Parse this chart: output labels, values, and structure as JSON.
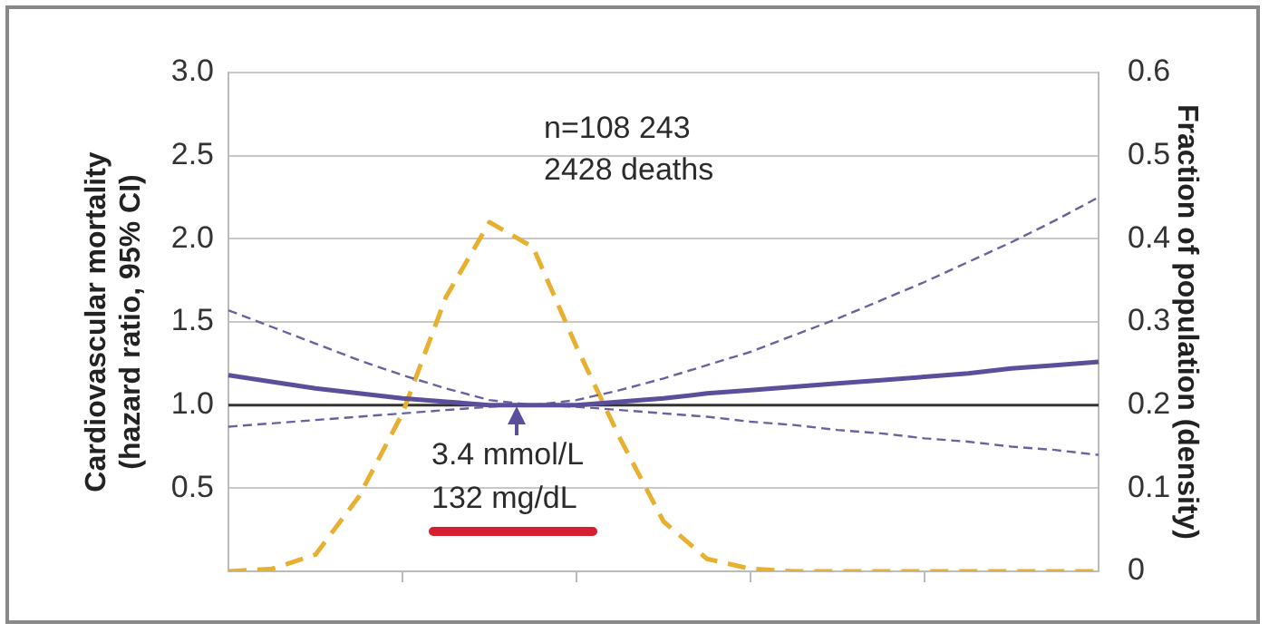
{
  "chart_data": {
    "type": "line",
    "ylabel": "Cardiovascular mortality (hazard ratio, 95% CI)",
    "y2label": "Fraction of population (density)",
    "categories": [
      null,
      null,
      null,
      null,
      null,
      null,
      null,
      null,
      null,
      null,
      null,
      null,
      null,
      null,
      null,
      null,
      null,
      null,
      null,
      null,
      null
    ],
    "series": [
      {
        "color": "#5b4f9c",
        "line_style": "solid",
        "values": [
          1.18,
          1.14,
          1.1,
          1.07,
          1.04,
          1.02,
          1.0,
          1.0,
          1.0,
          1.02,
          1.04,
          1.07,
          1.09,
          1.11,
          1.13,
          1.15,
          1.17,
          1.19,
          1.22,
          1.24,
          1.26
        ]
      },
      {
        "color": "#6a62a0",
        "line_style": "dashed",
        "values": [
          1.57,
          1.47,
          1.37,
          1.27,
          1.18,
          1.1,
          1.03,
          1.0,
          1.03,
          1.09,
          1.16,
          1.24,
          1.32,
          1.42,
          1.52,
          1.63,
          1.74,
          1.86,
          1.98,
          2.11,
          2.25
        ]
      },
      {
        "color": "#6a62a0",
        "line_style": "dashed",
        "values": [
          0.87,
          0.89,
          0.91,
          0.93,
          0.95,
          0.97,
          0.99,
          1.0,
          0.99,
          0.97,
          0.95,
          0.93,
          0.9,
          0.88,
          0.85,
          0.83,
          0.8,
          0.78,
          0.75,
          0.73,
          0.7
        ]
      },
      {
        "color": "#e8b030",
        "line_style": "dashed",
        "axis": "y2",
        "values": [
          0,
          0.003,
          0.02,
          0.09,
          0.19,
          0.33,
          0.42,
          0.39,
          0.27,
          0.16,
          0.06,
          0.015,
          0.003,
          0,
          0,
          0,
          0,
          0,
          0,
          0,
          0
        ]
      }
    ],
    "ylim": [
      0,
      3
    ],
    "yticks": [
      {
        "value": 0,
        "label": null
      },
      0.5,
      {
        "value": 1,
        "label": "1.0"
      },
      1.5,
      {
        "value": 2,
        "label": "2.0"
      },
      2.5,
      {
        "value": 3,
        "label": "3.0"
      }
    ],
    "y2lim": [
      0,
      0.6
    ],
    "y2ticks": [
      0,
      0.1,
      0.2,
      0.3,
      0.4,
      0.5,
      0.6
    ],
    "ref_lines": [
      {
        "axis": "y",
        "value": 1,
        "color": "#333333"
      }
    ],
    "annotations": [
      "n=108 243",
      "2428 deaths",
      "3.4 mmol/L",
      "132 mg/dL"
    ],
    "grid": "y",
    "legend": false,
    "marker": "none",
    "tick_labels": "y"
  }
}
